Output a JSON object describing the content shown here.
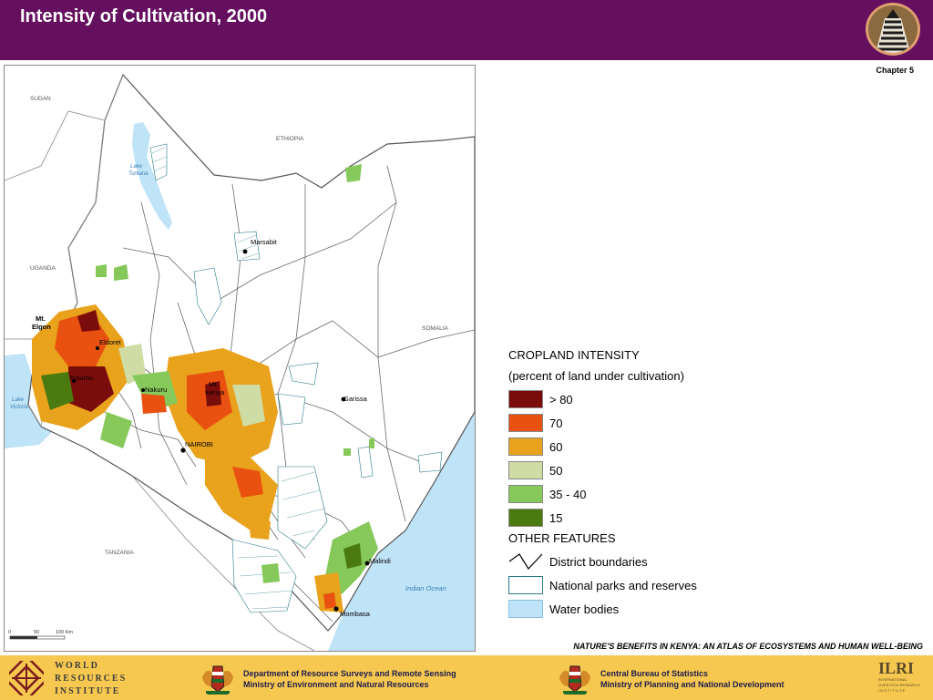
{
  "header": {
    "title": "Intensity of Cultivation, 2000",
    "logo_icon": "zebra-logo-icon"
  },
  "chapter": "Chapter 5",
  "map": {
    "country_labels": {
      "sudan": "SUDAN",
      "ethiopia": "ETHIOPIA",
      "uganda": "UGANDA",
      "somalia": "SOMALIA",
      "tanzania": "TANZANIA"
    },
    "water_labels": {
      "turkana": "Lake\nTurkana",
      "victoria": "Lake\nVictoria",
      "ocean": "Indian Ocean"
    },
    "places": {
      "marsabit": "Marsabit",
      "elgon": "Mt.\nElgon",
      "eldoret": "Eldoret",
      "kisumu": "Kisumu",
      "nakuru": "Nakuru",
      "kenya": "Mt.\nKenya",
      "garissa": "Garissa",
      "nairobi": "NAIROBI",
      "malindi": "Malindi",
      "mombasa": "Mombasa"
    },
    "scale": {
      "s0": "0",
      "s1": "50",
      "s2": "100 Km"
    }
  },
  "legend": {
    "title": "CROPLAND INTENSITY",
    "subtitle": "(percent of land under cultivation)",
    "classes": [
      {
        "label": "> 80",
        "color": "#7b0c0c"
      },
      {
        "label": "70",
        "color": "#e8510f"
      },
      {
        "label": "60",
        "color": "#e9a21c"
      },
      {
        "label": "50",
        "color": "#cfdca3"
      },
      {
        "label": "35 - 40",
        "color": "#86c95a"
      },
      {
        "label": "15",
        "color": "#4a7a10"
      }
    ],
    "other_title": "OTHER FEATURES",
    "features": [
      {
        "label": "District boundaries",
        "icon": "district-boundary-icon"
      },
      {
        "label": "National parks and reserves",
        "color": "#ffffff"
      },
      {
        "label": "Water bodies",
        "color": "#bfe3f7"
      }
    ]
  },
  "atlas_title": "NATURE'S BENEFITS IN KENYA: AN ATLAS OF ECOSYSTEMS AND HUMAN WELL-BEING",
  "footer": {
    "wri": {
      "line1": "WORLD",
      "line2": "RESOURCES",
      "line3": "INSTITUTE"
    },
    "drs": {
      "line1": "Department of Resource Surveys and Remote Sensing",
      "line2": "Ministry of Environment and Natural Resources"
    },
    "cbs": {
      "line1": "Central Bureau of Statistics",
      "line2": "Ministry of Planning and National Development"
    },
    "ilri": {
      "abbr": "ILRI",
      "line1": "INTERNATIONAL",
      "line2": "LIVESTOCK RESEARCH",
      "line3": "I N S T I T U T E"
    }
  },
  "colors": {
    "header": "#650f5f",
    "footer": "#f6c84f",
    "water": "#bfe3f7",
    "border": "#555555"
  }
}
